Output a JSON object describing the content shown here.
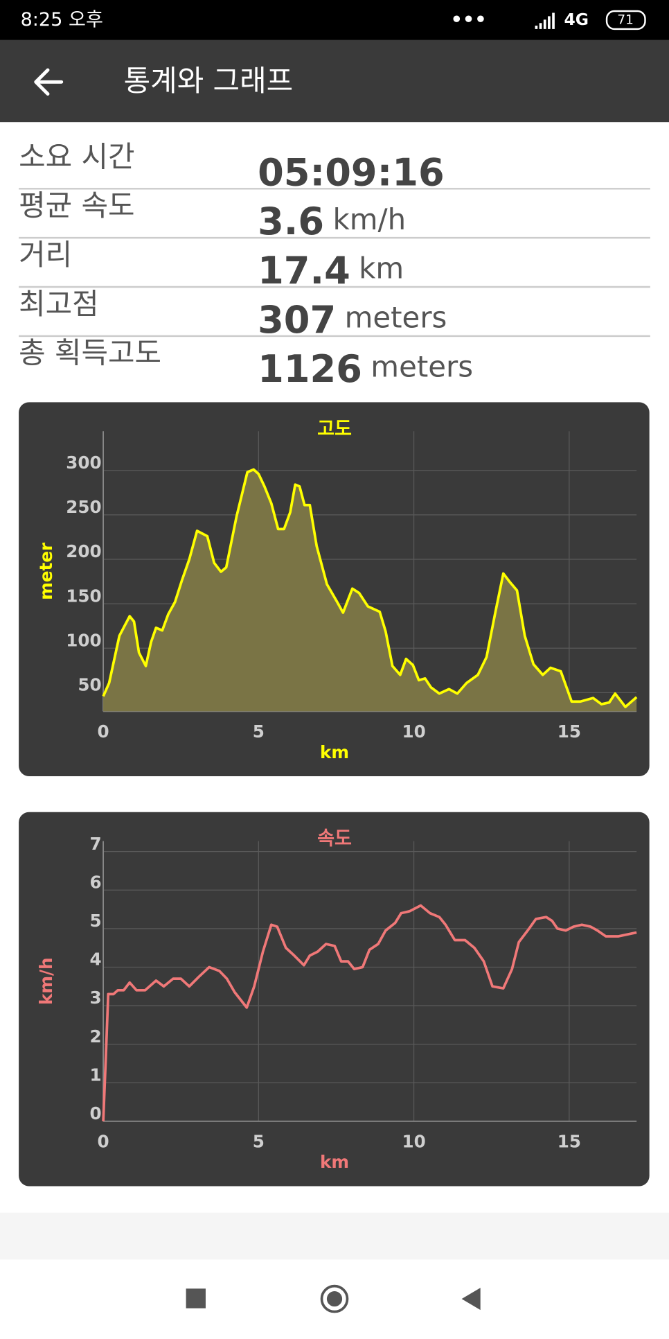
{
  "status_bar": {
    "time": "8:25 오후",
    "network": "4G",
    "battery": "71"
  },
  "app_bar": {
    "title": "통계와 그래프"
  },
  "stats": [
    {
      "label": "소요 시간",
      "value": "05:09:16"
    },
    {
      "label": "평균 속도",
      "value": "3.6",
      "unit": "km/h"
    },
    {
      "label": "거리",
      "value": "17.4",
      "unit": "km"
    },
    {
      "label": "최고점",
      "value": "307",
      "unit": "meters"
    },
    {
      "label": "총 획득고도",
      "value": "1126",
      "unit": "meters"
    }
  ],
  "chart_data": [
    {
      "type": "area",
      "title": "고도",
      "x_label": "km",
      "y_label": "meter",
      "color": "#ffff00",
      "fill_color": "#7a7445",
      "x": [
        0,
        0.19,
        0.52,
        0.85,
        0.99,
        1.15,
        1.37,
        1.54,
        1.7,
        1.9,
        2.09,
        2.31,
        2.53,
        2.77,
        3.02,
        3.35,
        3.57,
        3.79,
        3.96,
        4.29,
        4.64,
        4.84,
        5.0,
        5.19,
        5.41,
        5.63,
        5.82,
        6.02,
        6.18,
        6.32,
        6.48,
        6.65,
        6.87,
        7.2,
        7.53,
        7.72,
        8.02,
        8.24,
        8.52,
        8.9,
        9.09,
        9.31,
        9.56,
        9.75,
        9.97,
        10.16,
        10.36,
        10.55,
        10.82,
        11.13,
        11.4,
        11.7,
        12.06,
        12.34,
        12.61,
        12.88,
        13.1,
        13.32,
        13.57,
        13.85,
        14.15,
        14.4,
        14.73,
        15.08,
        15.36,
        15.77,
        16.04,
        16.29,
        16.48,
        16.81,
        17.17
      ],
      "values": [
        46,
        61,
        114,
        136,
        130,
        95,
        80,
        107,
        123,
        120,
        138,
        152,
        176,
        200,
        232,
        226,
        196,
        186,
        191,
        248,
        298,
        301,
        296,
        282,
        263,
        234,
        234,
        253,
        284,
        282,
        261,
        261,
        215,
        172,
        152,
        140,
        167,
        162,
        147,
        141,
        119,
        80,
        70,
        88,
        81,
        64,
        66,
        56,
        49,
        54,
        49,
        61,
        70,
        90,
        138,
        184,
        174,
        165,
        114,
        82,
        70,
        78,
        74,
        40,
        40,
        44,
        37,
        39,
        49,
        34,
        45
      ],
      "xlim": [
        0,
        17.17
      ],
      "ylim": [
        29,
        344
      ],
      "xticks": [
        0,
        5,
        10,
        15
      ],
      "yticks": [
        50,
        100,
        150,
        200,
        250,
        300
      ],
      "grid": true
    },
    {
      "type": "line",
      "title": "속도",
      "x_label": "km",
      "y_label": "km/h",
      "color": "#f07878",
      "x": [
        0,
        0.08,
        0.16,
        0.33,
        0.47,
        0.66,
        0.85,
        1.07,
        1.35,
        1.7,
        1.95,
        2.25,
        2.5,
        2.77,
        3.08,
        3.41,
        3.74,
        3.98,
        4.23,
        4.62,
        4.86,
        5.14,
        5.41,
        5.6,
        5.88,
        6.15,
        6.46,
        6.65,
        6.9,
        7.17,
        7.45,
        7.66,
        7.88,
        8.08,
        8.35,
        8.57,
        8.85,
        9.09,
        9.4,
        9.59,
        9.86,
        10.22,
        10.52,
        10.82,
        11.02,
        11.32,
        11.65,
        11.95,
        12.25,
        12.53,
        12.88,
        13.16,
        13.38,
        13.71,
        13.93,
        14.26,
        14.45,
        14.62,
        14.89,
        15.14,
        15.41,
        15.69,
        15.91,
        16.18,
        16.59,
        17.17
      ],
      "values": [
        0,
        1.6,
        3.3,
        3.3,
        3.4,
        3.4,
        3.6,
        3.4,
        3.4,
        3.65,
        3.5,
        3.7,
        3.7,
        3.5,
        3.75,
        4.0,
        3.9,
        3.7,
        3.35,
        2.95,
        3.5,
        4.4,
        5.1,
        5.05,
        4.5,
        4.3,
        4.05,
        4.3,
        4.4,
        4.6,
        4.55,
        4.15,
        4.15,
        3.95,
        4.0,
        4.45,
        4.6,
        4.95,
        5.15,
        5.4,
        5.45,
        5.6,
        5.4,
        5.3,
        5.1,
        4.7,
        4.7,
        4.5,
        4.15,
        3.5,
        3.45,
        3.95,
        4.65,
        5.0,
        5.25,
        5.3,
        5.2,
        5.0,
        4.95,
        5.05,
        5.1,
        5.05,
        4.95,
        4.8,
        4.8,
        4.9
      ],
      "xlim": [
        0,
        17.17
      ],
      "ylim": [
        0,
        7.27
      ],
      "xticks": [
        0,
        5,
        10,
        15
      ],
      "yticks": [
        0,
        1,
        2,
        3,
        4,
        5,
        6,
        7
      ],
      "grid": true
    }
  ]
}
